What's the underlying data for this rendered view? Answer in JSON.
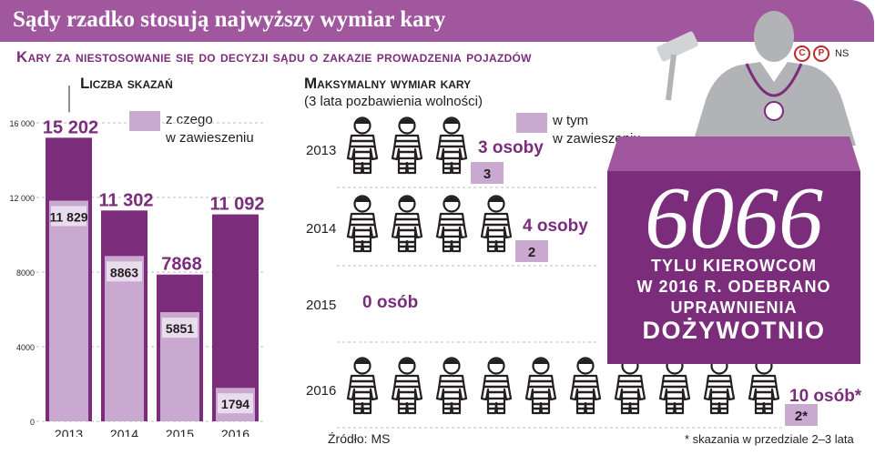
{
  "header": {
    "title": "Sądy rzadko stosują najwyższy wymiar kary",
    "subtitle": "Kary za niestosowanie się do decyzji sądu o zakazie prowadzenia pojazdów",
    "logo_text": "NS",
    "logo_c": "C",
    "logo_p": "P"
  },
  "left_chart": {
    "title": "Liczba skazań",
    "legend_label_line1": "z czego",
    "legend_label_line2": "w zawieszeniu"
  },
  "right_chart": {
    "title": "Maksymalny wymiar kary",
    "subtitle": "(3 lata pozbawienia wolności)",
    "legend_label_line1": "w tym",
    "legend_label_line2": "w zawieszeniu"
  },
  "panel": {
    "number": "6066",
    "line1": "TYLU KIEROWCOM",
    "line2": "W 2016 R. ODEBRANO",
    "line3": "UPRAWNIENIA",
    "line4": "DOŻYWOTNIO"
  },
  "footer": {
    "source": "Źródło: MS",
    "footnote": "* skazania w przedziale 2–3 lata"
  },
  "colors": {
    "dark_purple": "#7b2d7c",
    "mid_purple": "#a0579e",
    "light_purple": "#c9a9cf",
    "gray_figure": "#b1b3b6"
  },
  "chart_data": [
    {
      "type": "bar",
      "title": "Liczba skazań",
      "categories": [
        "2013",
        "2014",
        "2015",
        "2016"
      ],
      "series": [
        {
          "name": "",
          "values": [
            15202,
            11302,
            7868,
            11092
          ],
          "labels": [
            "15 202",
            "11 302",
            "7868",
            "11 092"
          ]
        },
        {
          "name": "z czego w zawieszeniu",
          "values": [
            11829,
            8863,
            5851,
            1794
          ],
          "labels": [
            "11 829",
            "8863",
            "5851",
            "1794"
          ]
        }
      ],
      "yticks": [
        0,
        4000,
        8000,
        12000,
        16000
      ],
      "ytick_labels": [
        "0",
        "4000",
        "8000",
        "12 000",
        "16 000"
      ],
      "ylim": [
        0,
        16000
      ],
      "grid": true
    },
    {
      "type": "pictogram",
      "title": "Maksymalny wymiar kary",
      "categories": [
        "2013",
        "2014",
        "2015",
        "2016"
      ],
      "series": [
        {
          "name": "",
          "values": [
            3,
            4,
            0,
            10
          ],
          "labels": [
            "3 osoby",
            "4 osoby",
            "0 osób",
            "10 osób*"
          ]
        },
        {
          "name": "w tym w zawieszeniu",
          "values": [
            3,
            2,
            0,
            2
          ],
          "labels": [
            "3",
            "2",
            "",
            "2*"
          ]
        }
      ]
    }
  ]
}
